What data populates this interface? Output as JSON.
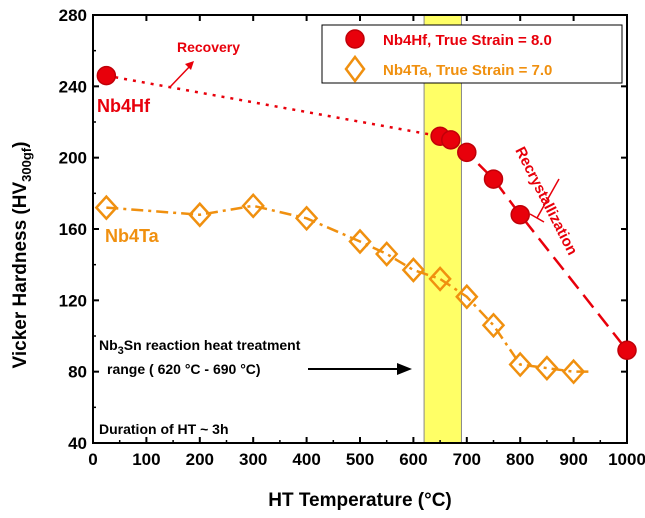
{
  "chart_data": {
    "type": "scatter",
    "xlabel": "HT Temperature (°C)",
    "ylabel_main": "Vicker Hardness (HV",
    "ylabel_sub": "300gf",
    "ylabel_close": ")",
    "xlim": [
      0,
      1000
    ],
    "ylim": [
      40,
      280
    ],
    "xticks": [
      "0",
      "100",
      "200",
      "300",
      "400",
      "500",
      "600",
      "700",
      "800",
      "900",
      "1000"
    ],
    "yticks": [
      "40",
      "80",
      "120",
      "160",
      "200",
      "240",
      "280"
    ],
    "legend_position": "top-right",
    "series": [
      {
        "name": "Nb4Hf, True Strain = 8.0",
        "color": "#e8000b",
        "marker": "filled-circle",
        "points": [
          [
            25,
            246
          ],
          [
            650,
            212
          ],
          [
            670,
            210
          ],
          [
            700,
            203
          ],
          [
            750,
            188
          ],
          [
            800,
            168
          ],
          [
            1000,
            92
          ]
        ]
      },
      {
        "name": "Nb4Ta, True Strain = 7.0",
        "color": "#f0900f",
        "marker": "open-diamond",
        "points": [
          [
            25,
            172
          ],
          [
            200,
            168
          ],
          [
            300,
            173
          ],
          [
            400,
            166
          ],
          [
            500,
            153
          ],
          [
            550,
            146
          ],
          [
            600,
            137
          ],
          [
            650,
            132
          ],
          [
            700,
            122
          ],
          [
            750,
            106
          ],
          [
            800,
            84
          ],
          [
            850,
            82
          ],
          [
            900,
            80
          ]
        ]
      }
    ],
    "shaded_region": {
      "x": [
        620,
        690
      ],
      "color": "#ffff66"
    },
    "annotations": {
      "nb4hf_label": "Nb4Hf",
      "nb4ta_label": "Nb4Ta",
      "recovery": "Recovery",
      "recrystallization": "Recrystallization",
      "reaction_line1_a": "Nb",
      "reaction_line1_sub": "3",
      "reaction_line1_b": "Sn reaction heat treatment",
      "reaction_line2": "range ( 620 °C - 690 °C)",
      "duration": "Duration of  HT ~ 3h"
    }
  }
}
